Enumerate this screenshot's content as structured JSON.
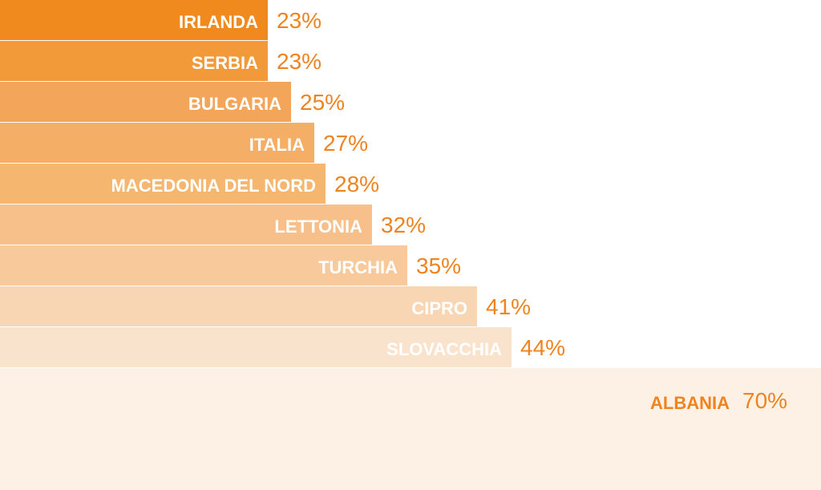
{
  "chart_data": {
    "type": "bar",
    "orientation": "horizontal",
    "categories": [
      "IRLANDA",
      "SERBIA",
      "BULGARIA",
      "ITALIA",
      "MACEDONIA DEL NORD",
      "LETTONIA",
      "TURCHIA",
      "CIPRO",
      "SLOVACCHIA",
      "ALBANIA"
    ],
    "values": [
      23,
      23,
      25,
      27,
      28,
      32,
      35,
      41,
      44,
      70
    ],
    "value_labels": [
      "23%",
      "23%",
      "25%",
      "27%",
      "28%",
      "32%",
      "35%",
      "41%",
      "44%",
      "70%"
    ],
    "unit": "%",
    "xlim": [
      0,
      70
    ],
    "title": "",
    "xlabel": "",
    "ylabel": "",
    "grid": false,
    "legend": "none",
    "colors": {
      "accent": "#ee8420",
      "bar_fills": [
        "#f08a1f",
        "#f29a3a",
        "#f3a65a",
        "#f4ae65",
        "#f5b670",
        "#f7c08a",
        "#f8ca9b",
        "#f9d6b3",
        "#fae3cc",
        "#fdf0e5"
      ],
      "label_light": "#ffffff",
      "label_dark": "#ee8420"
    }
  }
}
